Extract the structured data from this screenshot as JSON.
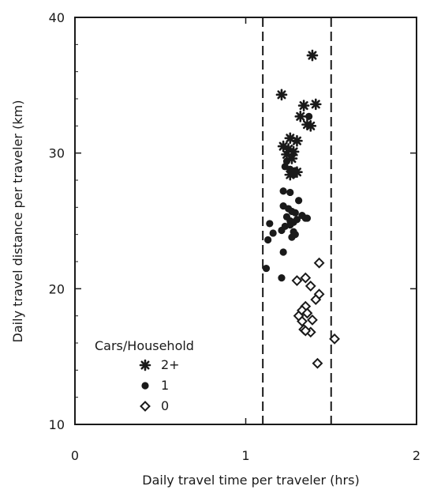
{
  "chart_data": {
    "type": "scatter",
    "xlabel": "Daily travel time per traveler (hrs)",
    "ylabel": "Daily travel distance per traveler (km)",
    "xlim": [
      0,
      2
    ],
    "ylim": [
      10,
      40
    ],
    "x_ticks": [
      "0",
      "1",
      "2"
    ],
    "y_ticks": [
      "10",
      "20",
      "30",
      "40"
    ],
    "reference_lines_x": [
      1.1,
      1.5
    ],
    "legend": {
      "title": "Cars/Household",
      "placement": "bottom-left",
      "entries": [
        "2+",
        "1",
        "0"
      ]
    },
    "series": [
      {
        "name": "2+",
        "marker": "star",
        "x": [
          1.39,
          1.21,
          1.34,
          1.41,
          1.32,
          1.36,
          1.26,
          1.3,
          1.38,
          1.22,
          1.25,
          1.28,
          1.24,
          1.27,
          1.3,
          1.26
        ],
        "y": [
          37.2,
          34.3,
          33.5,
          33.6,
          32.7,
          32.1,
          31.1,
          30.9,
          32.0,
          30.5,
          30.3,
          30.1,
          29.9,
          29.6,
          28.6,
          28.4
        ]
      },
      {
        "name": "1",
        "marker": "circle",
        "x": [
          1.37,
          1.24,
          1.23,
          1.26,
          1.28,
          1.29,
          1.22,
          1.26,
          1.31,
          1.22,
          1.25,
          1.27,
          1.29,
          1.33,
          1.35,
          1.24,
          1.26,
          1.28,
          1.3,
          1.36,
          1.23,
          1.26,
          1.28,
          1.21,
          1.14,
          1.16,
          1.13,
          1.22,
          1.12,
          1.27,
          1.29
        ],
        "y": [
          32.7,
          29.4,
          29.0,
          28.8,
          28.4,
          28.7,
          27.2,
          27.1,
          26.5,
          26.1,
          25.9,
          25.7,
          25.6,
          25.4,
          25.2,
          25.3,
          25.0,
          24.9,
          25.1,
          25.2,
          24.6,
          24.7,
          24.2,
          24.3,
          24.8,
          24.1,
          23.6,
          22.7,
          21.5,
          23.8,
          24.0
        ],
        "extra_x": [
          1.21
        ],
        "extra_y": [
          20.8
        ]
      },
      {
        "name": "0",
        "marker": "diamond",
        "x": [
          1.43,
          1.35,
          1.3,
          1.38,
          1.43,
          1.41,
          1.35,
          1.33,
          1.31,
          1.33,
          1.36,
          1.39,
          1.34,
          1.38,
          1.52,
          1.35,
          1.42
        ],
        "y": [
          21.9,
          20.8,
          20.6,
          20.2,
          19.6,
          19.2,
          18.7,
          18.4,
          18.0,
          17.6,
          18.2,
          17.7,
          17.0,
          16.8,
          16.3,
          16.9,
          14.5
        ]
      }
    ]
  }
}
